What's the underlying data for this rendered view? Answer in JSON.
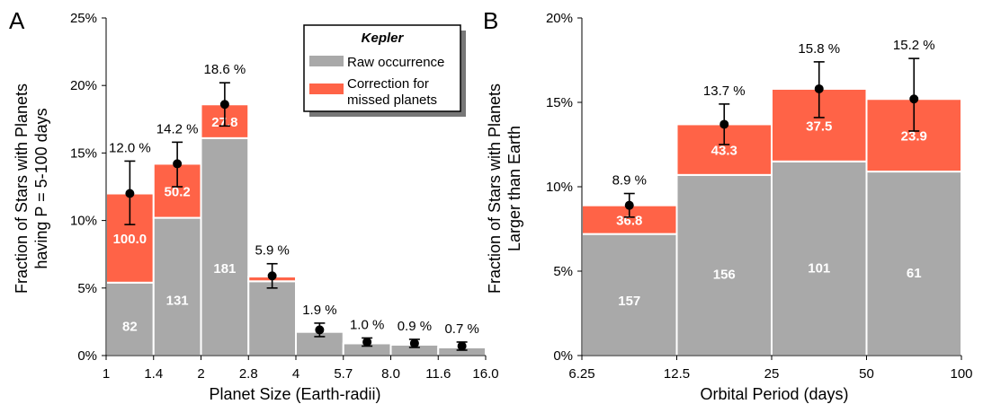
{
  "colors": {
    "raw": "#a9a9a9",
    "correction": "#ff6347",
    "error": "#000000"
  },
  "legend": {
    "title": "Kepler",
    "raw_label": "Raw occurrence",
    "correction_label_1": "Correction for",
    "correction_label_2": "missed planets"
  },
  "chart_data": [
    {
      "panel": "A",
      "type": "bar",
      "stacked": true,
      "xlabel": "Planet Size (Earth-radii)",
      "ylabel_line1": "Fraction of Stars with Planets",
      "ylabel_line2": "having P = 5-100 days",
      "ylim": [
        0,
        25
      ],
      "ytick_labels": [
        "0%",
        "5%",
        "10%",
        "15%",
        "20%",
        "25%"
      ],
      "xtick_labels": [
        "1",
        "1.4",
        "2",
        "2.8",
        "4",
        "5.7",
        "8.0",
        "11.6",
        "16.0"
      ],
      "series": [
        {
          "name": "Raw occurrence",
          "values": [
            5.4,
            10.2,
            16.1,
            5.5,
            1.75,
            0.9,
            0.8,
            0.6
          ]
        },
        {
          "name": "Correction for missed planets",
          "values": [
            6.6,
            4.0,
            2.5,
            0.35,
            0.0,
            0.0,
            0.0,
            0.0
          ]
        }
      ],
      "totals": [
        12.0,
        14.2,
        18.6,
        5.9,
        1.9,
        1.0,
        0.9,
        0.7
      ],
      "total_labels": [
        "12.0 %",
        "14.2 %",
        "18.6 %",
        "5.9 %",
        "1.9 %",
        "1.0 %",
        "0.9 %",
        "0.7 %"
      ],
      "error_low": [
        9.7,
        12.5,
        17.0,
        5.0,
        1.4,
        0.7,
        0.6,
        0.4
      ],
      "error_high": [
        14.4,
        15.8,
        20.2,
        6.8,
        2.4,
        1.3,
        1.2,
        1.0
      ],
      "raw_labels": [
        "82",
        "131",
        "181",
        "",
        "",
        "",
        "",
        ""
      ],
      "correction_labels": [
        "100.0",
        "50.2",
        "27.8",
        "",
        "",
        "",
        "",
        ""
      ]
    },
    {
      "panel": "B",
      "type": "bar",
      "stacked": true,
      "xlabel": "Orbital Period (days)",
      "ylabel_line1": "Fraction of Stars with Planets",
      "ylabel_line2": "Larger than Earth",
      "ylim": [
        0,
        20
      ],
      "ytick_labels": [
        "0%",
        "5%",
        "10%",
        "15%",
        "20%"
      ],
      "xtick_labels": [
        "6.25",
        "12.5",
        "25",
        "50",
        "100"
      ],
      "series": [
        {
          "name": "Raw occurrence",
          "values": [
            7.2,
            10.7,
            11.5,
            10.9
          ]
        },
        {
          "name": "Correction for missed planets",
          "values": [
            1.7,
            3.0,
            4.3,
            4.3
          ]
        }
      ],
      "totals": [
        8.9,
        13.7,
        15.8,
        15.2
      ],
      "total_labels": [
        "8.9 %",
        "13.7 %",
        "15.8 %",
        "15.2 %"
      ],
      "error_low": [
        8.2,
        12.5,
        14.1,
        13.3
      ],
      "error_high": [
        9.6,
        14.9,
        17.4,
        17.6
      ],
      "raw_labels": [
        "157",
        "156",
        "101",
        "61"
      ],
      "correction_labels": [
        "36.8",
        "43.3",
        "37.5",
        "23.9"
      ]
    }
  ]
}
